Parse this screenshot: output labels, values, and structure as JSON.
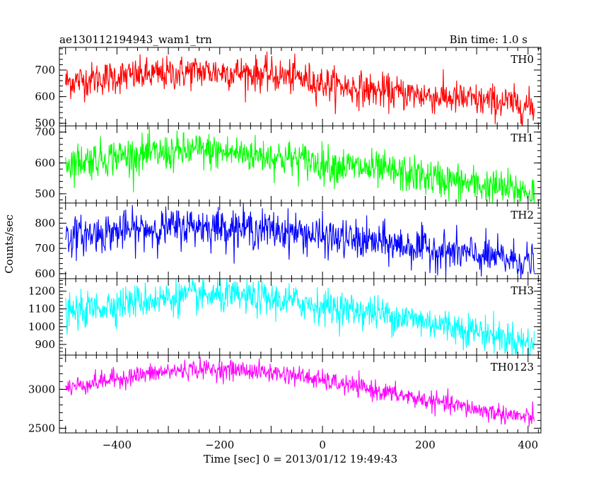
{
  "header": {
    "obs_id": "ae130112194943_wam1_trn",
    "bin_time": "Bin time: 1.0 s"
  },
  "chart_data": {
    "type": "line",
    "xlabel": "Time [sec] 0 = 2013/01/12 19:49:43",
    "ylabel": "Counts/sec",
    "xlim": [
      -512,
      425
    ],
    "x_ticks": [
      -400,
      -200,
      0,
      200,
      400
    ],
    "x_tick_labels": [
      "−400",
      "−200",
      "0",
      "200",
      "400"
    ],
    "x_data_range": [
      -500,
      412
    ],
    "bin_time_sec": 1.0,
    "panels": [
      {
        "name": "TH0",
        "color": "#ff0000",
        "ylim": [
          490,
          785
        ],
        "y_ticks": [
          500,
          600,
          700
        ],
        "y_tick_labels": [
          "500",
          "600",
          "700"
        ],
        "trend": [
          [
            -500,
            655
          ],
          [
            -400,
            675
          ],
          [
            -300,
            685
          ],
          [
            -250,
            695
          ],
          [
            -150,
            690
          ],
          [
            -50,
            672
          ],
          [
            0,
            650
          ],
          [
            100,
            622
          ],
          [
            200,
            605
          ],
          [
            300,
            585
          ],
          [
            350,
            580
          ],
          [
            412,
            560
          ]
        ],
        "noise": 32
      },
      {
        "name": "TH1",
        "color": "#00ff00",
        "ylim": [
          470,
          720
        ],
        "y_ticks": [
          500,
          600,
          700
        ],
        "y_tick_labels": [
          "500",
          "600",
          "700"
        ],
        "trend": [
          [
            -500,
            600
          ],
          [
            -400,
            622
          ],
          [
            -300,
            632
          ],
          [
            -250,
            640
          ],
          [
            -150,
            630
          ],
          [
            -50,
            612
          ],
          [
            0,
            598
          ],
          [
            100,
            578
          ],
          [
            200,
            555
          ],
          [
            300,
            528
          ],
          [
            412,
            505
          ]
        ],
        "noise": 30
      },
      {
        "name": "TH2",
        "color": "#0000ff",
        "ylim": [
          580,
          880
        ],
        "y_ticks": [
          600,
          700,
          800
        ],
        "y_tick_labels": [
          "600",
          "700",
          "800"
        ],
        "trend": [
          [
            -500,
            745
          ],
          [
            -400,
            768
          ],
          [
            -300,
            782
          ],
          [
            -250,
            790
          ],
          [
            -150,
            780
          ],
          [
            -50,
            765
          ],
          [
            0,
            745
          ],
          [
            100,
            725
          ],
          [
            200,
            700
          ],
          [
            300,
            672
          ],
          [
            412,
            645
          ]
        ],
        "noise": 38
      },
      {
        "name": "TH3",
        "color": "#00ffff",
        "ylim": [
          840,
          1270
        ],
        "y_ticks": [
          900,
          1000,
          1100,
          1200
        ],
        "y_tick_labels": [
          "900",
          "1000",
          "1100",
          "1200"
        ],
        "trend": [
          [
            -500,
            1070
          ],
          [
            -400,
            1130
          ],
          [
            -300,
            1160
          ],
          [
            -250,
            1175
          ],
          [
            -150,
            1165
          ],
          [
            -50,
            1140
          ],
          [
            0,
            1115
          ],
          [
            100,
            1080
          ],
          [
            200,
            1030
          ],
          [
            300,
            975
          ],
          [
            412,
            900
          ]
        ],
        "noise": 48
      },
      {
        "name": "TH0123",
        "color": "#ff00ff",
        "ylim": [
          2440,
          3440
        ],
        "y_ticks": [
          2500,
          3000
        ],
        "y_tick_labels": [
          "2500",
          "3000"
        ],
        "trend": [
          [
            -500,
            3020
          ],
          [
            -400,
            3140
          ],
          [
            -300,
            3230
          ],
          [
            -250,
            3260
          ],
          [
            -150,
            3245
          ],
          [
            -50,
            3180
          ],
          [
            0,
            3110
          ],
          [
            100,
            2990
          ],
          [
            200,
            2860
          ],
          [
            300,
            2740
          ],
          [
            412,
            2620
          ]
        ],
        "noise": 62
      }
    ]
  }
}
